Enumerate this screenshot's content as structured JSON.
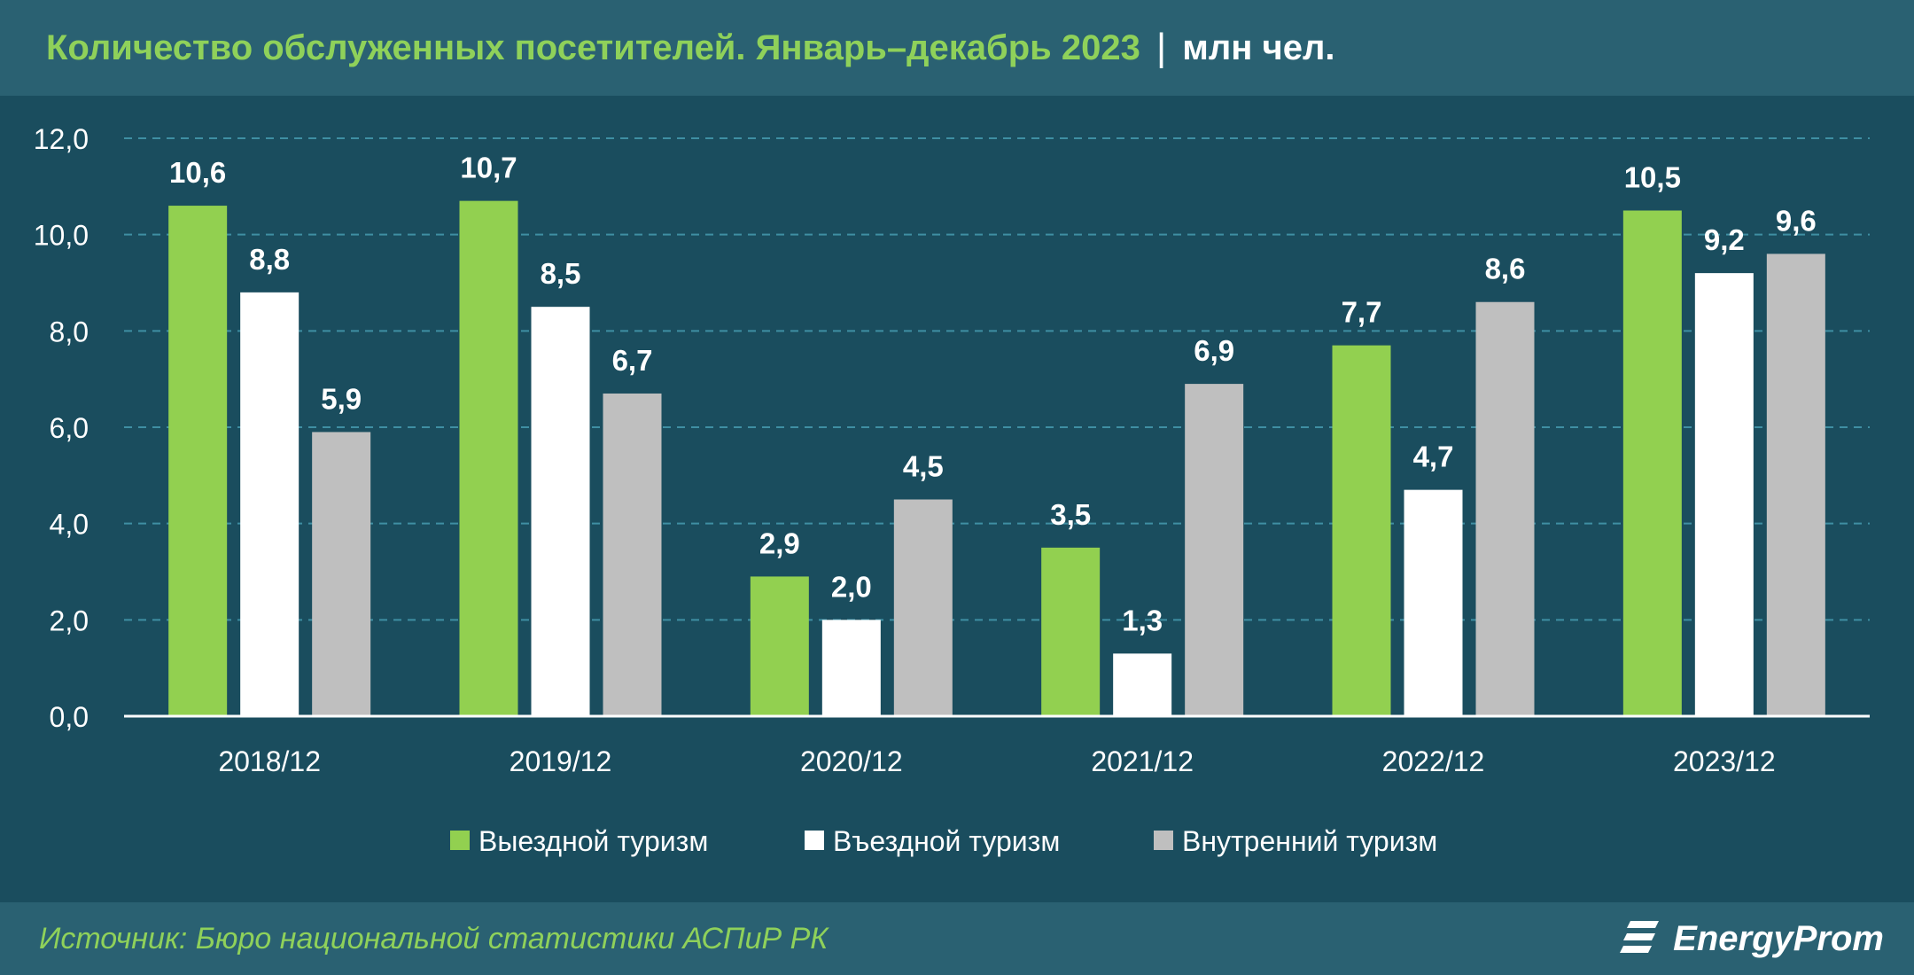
{
  "header": {
    "title": "Количество обслуженных посетителей. Январь–декабрь 2023",
    "separator": "|",
    "unit": "млн чел."
  },
  "footer": {
    "source": "Источник: Бюро национальной статистики АСПиР РК",
    "logo_text": "EnergyProm"
  },
  "colors": {
    "background": "#1a4d5e",
    "header_bg": "#2a6172",
    "accent_green": "#8fd15a",
    "series_green": "#92d050",
    "series_white": "#ffffff",
    "series_gray": "#bfbfbf"
  },
  "chart_data": {
    "type": "bar",
    "categories": [
      "2018/12",
      "2019/12",
      "2020/12",
      "2021/12",
      "2022/12",
      "2023/12"
    ],
    "series": [
      {
        "name": "Выездной туризм",
        "color": "#92d050",
        "values": [
          10.6,
          10.7,
          2.9,
          3.5,
          7.7,
          10.5
        ],
        "labels": [
          "10,6",
          "10,7",
          "2,9",
          "3,5",
          "7,7",
          "10,5"
        ]
      },
      {
        "name": "Въездной туризм",
        "color": "#ffffff",
        "values": [
          8.8,
          8.5,
          2.0,
          1.3,
          4.7,
          9.2
        ],
        "labels": [
          "8,8",
          "8,5",
          "2,0",
          "1,3",
          "4,7",
          "9,2"
        ]
      },
      {
        "name": "Внутренний туризм",
        "color": "#bfbfbf",
        "values": [
          5.9,
          6.7,
          4.5,
          6.9,
          8.6,
          9.6
        ],
        "labels": [
          "5,9",
          "6,7",
          "4,5",
          "6,9",
          "8,6",
          "9,6"
        ]
      }
    ],
    "ylim": [
      0,
      12
    ],
    "yticks": [
      0,
      2,
      4,
      6,
      8,
      10,
      12
    ],
    "ytick_labels": [
      "0,0",
      "2,0",
      "4,0",
      "6,0",
      "8,0",
      "10,0",
      "12,0"
    ],
    "grid": true,
    "legend_position": "bottom"
  }
}
